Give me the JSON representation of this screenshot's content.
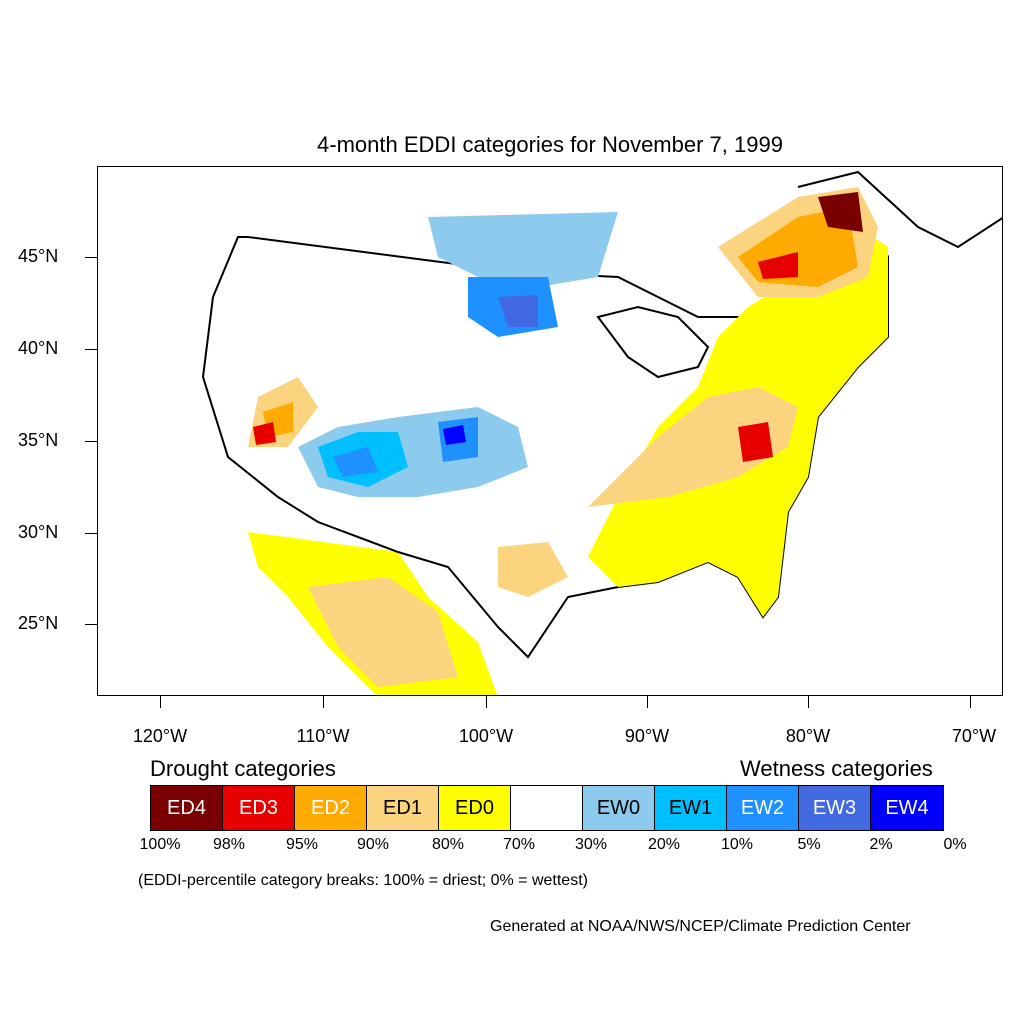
{
  "title": "4-month EDDI categories for November 7, 1999",
  "latitude_labels": [
    "45°N",
    "40°N",
    "35°N",
    "30°N",
    "25°N"
  ],
  "longitude_labels": [
    "120°W",
    "110°W",
    "100°W",
    "90°W",
    "80°W",
    "70°W"
  ],
  "legend": {
    "drought_heading": "Drought categories",
    "wetness_heading": "Wetness categories",
    "categories": [
      {
        "label": "ED4",
        "color": "#7a0000",
        "text_color": "#ffffff"
      },
      {
        "label": "ED3",
        "color": "#e60000",
        "text_color": "#ffffff"
      },
      {
        "label": "ED2",
        "color": "#ffaa00",
        "text_color": "#ffffff"
      },
      {
        "label": "ED1",
        "color": "#fcd37f",
        "text_color": "#000000"
      },
      {
        "label": "ED0",
        "color": "#ffff00",
        "text_color": "#000000"
      },
      {
        "label": "",
        "color": "#ffffff",
        "text_color": "#000000"
      },
      {
        "label": "EW0",
        "color": "#8ccbee",
        "text_color": "#000000"
      },
      {
        "label": "EW1",
        "color": "#00bfff",
        "text_color": "#000000"
      },
      {
        "label": "EW2",
        "color": "#1e90ff",
        "text_color": "#ffffff"
      },
      {
        "label": "EW3",
        "color": "#4169e1",
        "text_color": "#ffffff"
      },
      {
        "label": "EW4",
        "color": "#0000ff",
        "text_color": "#ffffff"
      }
    ],
    "breaks": [
      "100%",
      "98%",
      "95%",
      "90%",
      "80%",
      "70%",
      "30%",
      "20%",
      "10%",
      "5%",
      "2%",
      "0%"
    ]
  },
  "note": "(EDDI-percentile category breaks: 100% = driest; 0% = wettest)",
  "credit": "Generated at NOAA/NWS/NCEP/Climate Prediction Center"
}
